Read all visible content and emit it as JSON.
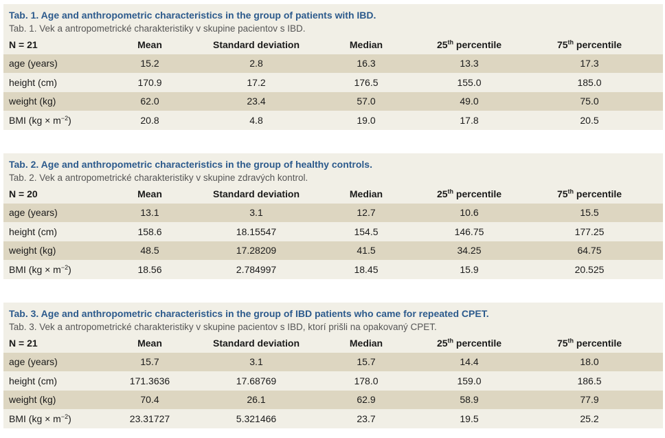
{
  "tables": [
    {
      "caption_en": "Tab. 1. Age and anthropometric characteristics in the group of patients with IBD.",
      "caption_sk": "Tab. 1. Vek a antropometrické charakteristiky v skupine pacientov s IBD.",
      "n_label": "N = 21",
      "rows": [
        {
          "label": "age (years)",
          "mean": "15.2",
          "sd": "2.8",
          "median": "16.3",
          "p25": "13.3",
          "p75": "17.3"
        },
        {
          "label": "height (cm)",
          "mean": "170.9",
          "sd": "17.2",
          "median": "176.5",
          "p25": "155.0",
          "p75": "185.0"
        },
        {
          "label": "weight (kg)",
          "mean": "62.0",
          "sd": "23.4",
          "median": "57.0",
          "p25": "49.0",
          "p75": "75.0"
        },
        {
          "label": "BMI (kg × m",
          "mean": "20.8",
          "sd": "4.8",
          "median": "19.0",
          "p25": "17.8",
          "p75": "20.5"
        }
      ]
    },
    {
      "caption_en": "Tab. 2. Age and anthropometric characteristics in the group of healthy controls.",
      "caption_sk": "Tab. 2. Vek a antropometrické charakteristiky v skupine zdravých kontrol.",
      "n_label": "N = 20",
      "rows": [
        {
          "label": "age (years)",
          "mean": "13.1",
          "sd": "3.1",
          "median": "12.7",
          "p25": "10.6",
          "p75": "15.5"
        },
        {
          "label": "height (cm)",
          "mean": "158.6",
          "sd": "18.15547",
          "median": "154.5",
          "p25": "146.75",
          "p75": "177.25"
        },
        {
          "label": "weight (kg)",
          "mean": "48.5",
          "sd": "17.28209",
          "median": "41.5",
          "p25": "34.25",
          "p75": "64.75"
        },
        {
          "label": "BMI (kg × m",
          "mean": "18.56",
          "sd": "2.784997",
          "median": "18.45",
          "p25": "15.9",
          "p75": "20.525"
        }
      ]
    },
    {
      "caption_en": "Tab. 3. Age and anthropometric characteristics in the group of IBD patients who came for repeated CPET.",
      "caption_sk": "Tab. 3. Vek a antropometrické charakteristiky v skupine pacientov s IBD, ktorí prišli na opakovaný CPET.",
      "n_label": "N = 21",
      "rows": [
        {
          "label": "age (years)",
          "mean": "15.7",
          "sd": "3.1",
          "median": "15.7",
          "p25": "14.4",
          "p75": "18.0"
        },
        {
          "label": "height (cm)",
          "mean": "171.3636",
          "sd": "17.68769",
          "median": "178.0",
          "p25": "159.0",
          "p75": "186.5"
        },
        {
          "label": "weight (kg)",
          "mean": "70.4",
          "sd": "26.1",
          "median": "62.9",
          "p25": "58.9",
          "p75": "77.9"
        },
        {
          "label": "BMI (kg × m",
          "mean": "23.31727",
          "sd": "5.321466",
          "median": "23.7",
          "p25": "19.5",
          "p75": "25.2"
        }
      ]
    }
  ],
  "columns": {
    "mean": "Mean",
    "sd": "Standard deviation",
    "median": "Median",
    "p25_num": "25",
    "p75_num": "75",
    "ordinal": "th",
    "percentile": " percentile"
  },
  "bmi_exponent": "−2",
  "bmi_close": ")"
}
